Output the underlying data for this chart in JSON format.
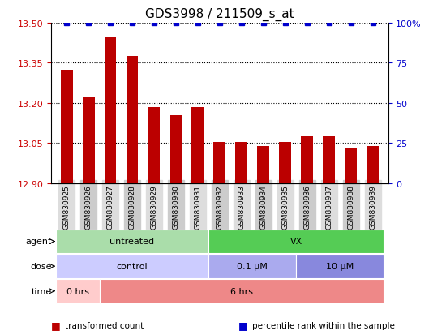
{
  "title": "GDS3998 / 211509_s_at",
  "samples": [
    "GSM830925",
    "GSM830926",
    "GSM830927",
    "GSM830928",
    "GSM830929",
    "GSM830930",
    "GSM830931",
    "GSM830932",
    "GSM830933",
    "GSM830934",
    "GSM830935",
    "GSM830936",
    "GSM830937",
    "GSM830938",
    "GSM830939"
  ],
  "bar_values": [
    13.325,
    13.225,
    13.445,
    13.375,
    13.185,
    13.155,
    13.185,
    13.055,
    13.055,
    13.04,
    13.055,
    13.075,
    13.075,
    13.03,
    13.04
  ],
  "bar_color": "#BB0000",
  "percentile_color": "#0000CC",
  "ylim_left": [
    12.9,
    13.5
  ],
  "ylim_right": [
    0,
    100
  ],
  "yticks_left": [
    12.9,
    13.05,
    13.2,
    13.35,
    13.5
  ],
  "yticks_right": [
    0,
    25,
    50,
    75,
    100
  ],
  "title_fontsize": 11,
  "annotation_rows": [
    {
      "label": "agent",
      "segments": [
        {
          "text": "untreated",
          "start": 0,
          "end": 6,
          "color": "#AADDAA"
        },
        {
          "text": "VX",
          "start": 7,
          "end": 14,
          "color": "#55CC55"
        }
      ]
    },
    {
      "label": "dose",
      "segments": [
        {
          "text": "control",
          "start": 0,
          "end": 6,
          "color": "#CCCCFF"
        },
        {
          "text": "0.1 μM",
          "start": 7,
          "end": 10,
          "color": "#AAAAEE"
        },
        {
          "text": "10 μM",
          "start": 11,
          "end": 14,
          "color": "#8888DD"
        }
      ]
    },
    {
      "label": "time",
      "segments": [
        {
          "text": "0 hrs",
          "start": 0,
          "end": 1,
          "color": "#FFCCCC"
        },
        {
          "text": "6 hrs",
          "start": 2,
          "end": 14,
          "color": "#EE8888"
        }
      ]
    }
  ],
  "legend_items": [
    {
      "label": "transformed count",
      "color": "#BB0000"
    },
    {
      "label": "percentile rank within the sample",
      "color": "#0000CC"
    }
  ],
  "xtick_bg_even": "#DDDDDD",
  "xtick_bg_odd": "#CCCCCC"
}
